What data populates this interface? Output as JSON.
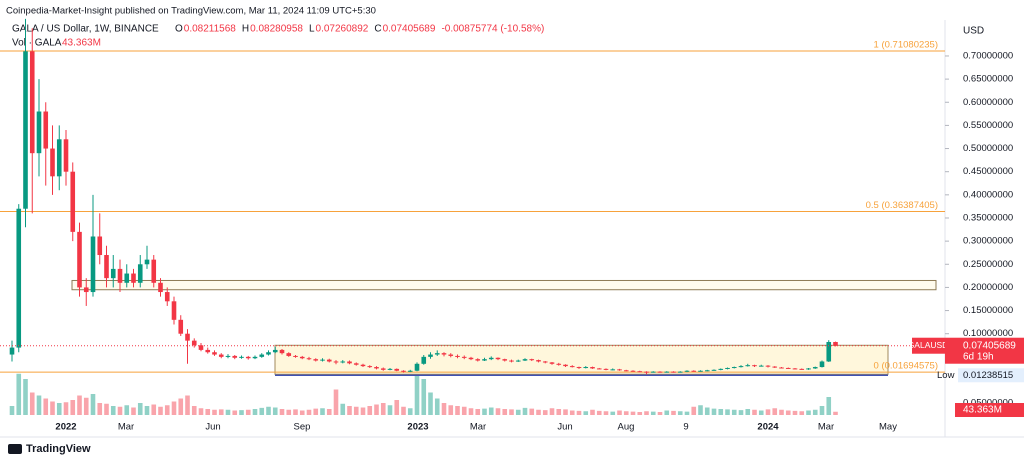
{
  "header": {
    "publisher": "Coinpedia-Market-Insight published on TradingView.com, Mar 11, 2024 11:09 UTC+5:30",
    "symbol": "GALA / US Dollar, 1W, BINANCE",
    "ohlc": [
      {
        "key": "O",
        "value": "0.08211568"
      },
      {
        "key": "H",
        "value": "0.08280958"
      },
      {
        "key": "L",
        "value": "0.07260892"
      },
      {
        "key": "C",
        "value": "0.07405689"
      }
    ],
    "change": "-0.00875774 (-10.58%)",
    "volume_title": "Vol · GALA",
    "volume_value": "43.363M"
  },
  "currency": "USD",
  "footer": "TradingView",
  "chart_data": {
    "type": "candlestick",
    "ylim": [
      0,
      0.7777
    ],
    "yticks": [
      {
        "value": 0.1,
        "label": "0.10000000"
      },
      {
        "value": 0.15,
        "label": "0.15000000"
      },
      {
        "value": 0.2,
        "label": "0.20000000"
      },
      {
        "value": 0.25,
        "label": "0.25000000"
      },
      {
        "value": 0.3,
        "label": "0.30000000"
      },
      {
        "value": 0.35,
        "label": "0.35000000"
      },
      {
        "value": 0.4,
        "label": "0.40000000"
      },
      {
        "value": 0.45,
        "label": "0.45000000"
      },
      {
        "value": 0.5,
        "label": "0.50000000"
      },
      {
        "value": 0.55,
        "label": "0.55000000"
      },
      {
        "value": 0.6,
        "label": "0.60000000"
      },
      {
        "value": 0.65,
        "label": "0.65000000"
      },
      {
        "value": 0.7,
        "label": "0.70000000"
      }
    ],
    "volume_axis_label": "0.05000000",
    "xticks": [
      "2022",
      "Mar",
      "Jun",
      "Sep",
      "2023",
      "Mar",
      "Jun",
      "Aug",
      "9",
      "2024",
      "Mar",
      "May"
    ],
    "up_color": "#089981",
    "down_color": "#f23645",
    "candles": [
      [
        0.055,
        0.085,
        0.04,
        0.07
      ],
      [
        0.07,
        0.38,
        0.06,
        0.37
      ],
      [
        0.37,
        0.78,
        0.33,
        0.71
      ],
      [
        0.71,
        0.76,
        0.36,
        0.49
      ],
      [
        0.49,
        0.65,
        0.44,
        0.58
      ],
      [
        0.58,
        0.6,
        0.42,
        0.5
      ],
      [
        0.5,
        0.55,
        0.4,
        0.44
      ],
      [
        0.44,
        0.55,
        0.41,
        0.52
      ],
      [
        0.52,
        0.54,
        0.42,
        0.45
      ],
      [
        0.45,
        0.47,
        0.3,
        0.32
      ],
      [
        0.32,
        0.34,
        0.18,
        0.2
      ],
      [
        0.2,
        0.22,
        0.16,
        0.19
      ],
      [
        0.19,
        0.4,
        0.18,
        0.31
      ],
      [
        0.31,
        0.36,
        0.25,
        0.27
      ],
      [
        0.27,
        0.29,
        0.2,
        0.22
      ],
      [
        0.22,
        0.27,
        0.2,
        0.24
      ],
      [
        0.24,
        0.26,
        0.19,
        0.21
      ],
      [
        0.21,
        0.25,
        0.2,
        0.23
      ],
      [
        0.23,
        0.24,
        0.2,
        0.21
      ],
      [
        0.21,
        0.27,
        0.2,
        0.25
      ],
      [
        0.25,
        0.29,
        0.24,
        0.26
      ],
      [
        0.26,
        0.27,
        0.2,
        0.21
      ],
      [
        0.21,
        0.22,
        0.18,
        0.19
      ],
      [
        0.19,
        0.2,
        0.16,
        0.17
      ],
      [
        0.17,
        0.18,
        0.12,
        0.13
      ],
      [
        0.13,
        0.14,
        0.095,
        0.1
      ],
      [
        0.1,
        0.11,
        0.035,
        0.085
      ],
      [
        0.085,
        0.09,
        0.07,
        0.075
      ],
      [
        0.075,
        0.08,
        0.062,
        0.065
      ],
      [
        0.065,
        0.07,
        0.057,
        0.06
      ],
      [
        0.06,
        0.064,
        0.052,
        0.055
      ],
      [
        0.055,
        0.058,
        0.047,
        0.05
      ],
      [
        0.05,
        0.056,
        0.047,
        0.052
      ],
      [
        0.052,
        0.054,
        0.045,
        0.048
      ],
      [
        0.048,
        0.053,
        0.046,
        0.05
      ],
      [
        0.05,
        0.052,
        0.044,
        0.047
      ],
      [
        0.047,
        0.053,
        0.045,
        0.05
      ],
      [
        0.05,
        0.058,
        0.048,
        0.055
      ],
      [
        0.055,
        0.064,
        0.053,
        0.06
      ],
      [
        0.06,
        0.072,
        0.058,
        0.065
      ],
      [
        0.065,
        0.067,
        0.055,
        0.058
      ],
      [
        0.058,
        0.06,
        0.05,
        0.052
      ],
      [
        0.052,
        0.054,
        0.048,
        0.05
      ],
      [
        0.05,
        0.052,
        0.045,
        0.047
      ],
      [
        0.047,
        0.05,
        0.043,
        0.045
      ],
      [
        0.045,
        0.047,
        0.04,
        0.042
      ],
      [
        0.042,
        0.047,
        0.04,
        0.044
      ],
      [
        0.044,
        0.046,
        0.038,
        0.04
      ],
      [
        0.04,
        0.043,
        0.034,
        0.038
      ],
      [
        0.038,
        0.043,
        0.036,
        0.04
      ],
      [
        0.04,
        0.042,
        0.034,
        0.036
      ],
      [
        0.036,
        0.038,
        0.031,
        0.033
      ],
      [
        0.033,
        0.035,
        0.028,
        0.03
      ],
      [
        0.03,
        0.032,
        0.026,
        0.028
      ],
      [
        0.028,
        0.03,
        0.023,
        0.025
      ],
      [
        0.025,
        0.027,
        0.02,
        0.022
      ],
      [
        0.022,
        0.026,
        0.021,
        0.024
      ],
      [
        0.024,
        0.025,
        0.019,
        0.02
      ],
      [
        0.02,
        0.021,
        0.016,
        0.018
      ],
      [
        0.018,
        0.022,
        0.017,
        0.02
      ],
      [
        0.02,
        0.038,
        0.019,
        0.035
      ],
      [
        0.035,
        0.054,
        0.033,
        0.05
      ],
      [
        0.05,
        0.06,
        0.046,
        0.055
      ],
      [
        0.055,
        0.064,
        0.052,
        0.058
      ],
      [
        0.058,
        0.06,
        0.051,
        0.055
      ],
      [
        0.055,
        0.058,
        0.049,
        0.052
      ],
      [
        0.052,
        0.055,
        0.047,
        0.05
      ],
      [
        0.05,
        0.053,
        0.045,
        0.048
      ],
      [
        0.048,
        0.05,
        0.043,
        0.045
      ],
      [
        0.045,
        0.047,
        0.04,
        0.042
      ],
      [
        0.042,
        0.048,
        0.041,
        0.045
      ],
      [
        0.045,
        0.051,
        0.043,
        0.048
      ],
      [
        0.048,
        0.049,
        0.043,
        0.045
      ],
      [
        0.045,
        0.046,
        0.04,
        0.042
      ],
      [
        0.042,
        0.044,
        0.038,
        0.04
      ],
      [
        0.04,
        0.044,
        0.039,
        0.042
      ],
      [
        0.042,
        0.047,
        0.041,
        0.045
      ],
      [
        0.045,
        0.046,
        0.041,
        0.043
      ],
      [
        0.043,
        0.044,
        0.038,
        0.04
      ],
      [
        0.04,
        0.041,
        0.036,
        0.038
      ],
      [
        0.038,
        0.039,
        0.033,
        0.035
      ],
      [
        0.035,
        0.037,
        0.031,
        0.033
      ],
      [
        0.033,
        0.034,
        0.028,
        0.03
      ],
      [
        0.03,
        0.032,
        0.027,
        0.028
      ],
      [
        0.028,
        0.029,
        0.024,
        0.026
      ],
      [
        0.026,
        0.03,
        0.025,
        0.028
      ],
      [
        0.028,
        0.029,
        0.024,
        0.025
      ],
      [
        0.025,
        0.026,
        0.023,
        0.024
      ],
      [
        0.024,
        0.025,
        0.021,
        0.022
      ],
      [
        0.022,
        0.025,
        0.021,
        0.023
      ],
      [
        0.023,
        0.024,
        0.02,
        0.021
      ],
      [
        0.021,
        0.022,
        0.019,
        0.02
      ],
      [
        0.02,
        0.021,
        0.018,
        0.019
      ],
      [
        0.019,
        0.02,
        0.017,
        0.018
      ],
      [
        0.018,
        0.019,
        0.0124,
        0.017
      ],
      [
        0.017,
        0.019,
        0.016,
        0.018
      ],
      [
        0.018,
        0.019,
        0.016,
        0.017
      ],
      [
        0.017,
        0.019,
        0.016,
        0.018
      ],
      [
        0.018,
        0.019,
        0.016,
        0.017
      ],
      [
        0.017,
        0.019,
        0.016,
        0.018
      ],
      [
        0.018,
        0.021,
        0.017,
        0.02
      ],
      [
        0.02,
        0.021,
        0.018,
        0.019
      ],
      [
        0.019,
        0.021,
        0.018,
        0.02
      ],
      [
        0.02,
        0.022,
        0.019,
        0.021
      ],
      [
        0.021,
        0.023,
        0.02,
        0.022
      ],
      [
        0.022,
        0.025,
        0.021,
        0.024
      ],
      [
        0.024,
        0.027,
        0.023,
        0.026
      ],
      [
        0.026,
        0.029,
        0.025,
        0.028
      ],
      [
        0.028,
        0.032,
        0.027,
        0.03
      ],
      [
        0.03,
        0.035,
        0.029,
        0.032
      ],
      [
        0.032,
        0.033,
        0.028,
        0.03
      ],
      [
        0.03,
        0.033,
        0.029,
        0.031
      ],
      [
        0.031,
        0.032,
        0.027,
        0.029
      ],
      [
        0.029,
        0.03,
        0.026,
        0.027
      ],
      [
        0.027,
        0.028,
        0.025,
        0.026
      ],
      [
        0.026,
        0.027,
        0.024,
        0.025
      ],
      [
        0.025,
        0.026,
        0.023,
        0.024
      ],
      [
        0.024,
        0.025,
        0.022,
        0.023
      ],
      [
        0.023,
        0.026,
        0.022,
        0.025
      ],
      [
        0.025,
        0.029,
        0.024,
        0.028
      ],
      [
        0.028,
        0.042,
        0.027,
        0.04
      ],
      [
        0.04,
        0.086,
        0.039,
        0.0821
      ],
      [
        0.08211568,
        0.08280958,
        0.07260892,
        0.07405689
      ]
    ],
    "volume": [
      120,
      550,
      480,
      300,
      260,
      220,
      180,
      160,
      170,
      200,
      260,
      230,
      280,
      160,
      150,
      120,
      110,
      130,
      100,
      160,
      120,
      140,
      110,
      130,
      180,
      220,
      260,
      120,
      90,
      80,
      70,
      75,
      70,
      60,
      65,
      70,
      80,
      95,
      110,
      100,
      80,
      70,
      75,
      60,
      70,
      85,
      90,
      80,
      340,
      150,
      120,
      110,
      100,
      120,
      140,
      160,
      130,
      200,
      110,
      90,
      520,
      480,
      300,
      220,
      160,
      130,
      120,
      110,
      90,
      80,
      85,
      100,
      90,
      80,
      75,
      70,
      95,
      85,
      70,
      65,
      90,
      80,
      75,
      60,
      55,
      50,
      70,
      55,
      50,
      45,
      60,
      50,
      45,
      40,
      50,
      45,
      40,
      60,
      55,
      50,
      45,
      110,
      130,
      100,
      85,
      80,
      75,
      70,
      65,
      80,
      70,
      60,
      75,
      90,
      70,
      60,
      55,
      50,
      60,
      70,
      120,
      240,
      43.363
    ],
    "fib_levels": [
      {
        "label": "1 (0.71080235)",
        "value": 0.71080235
      },
      {
        "label": "0.5 (0.36387405)",
        "value": 0.36387405
      },
      {
        "label": "0 (0.01694575)",
        "value": 0.01694575
      }
    ],
    "zones": [
      {
        "top": 0.215,
        "bottom": 0.195
      },
      {
        "top": 0.075,
        "bottom": 0.0124
      }
    ],
    "low": {
      "label": "Low",
      "value": 0.01238515,
      "value_label": "0.01238515"
    },
    "last_price": {
      "name": "GALAUSD",
      "value": 0.07405689,
      "value_label": "0.07405689",
      "countdown": "6d 19h"
    }
  }
}
